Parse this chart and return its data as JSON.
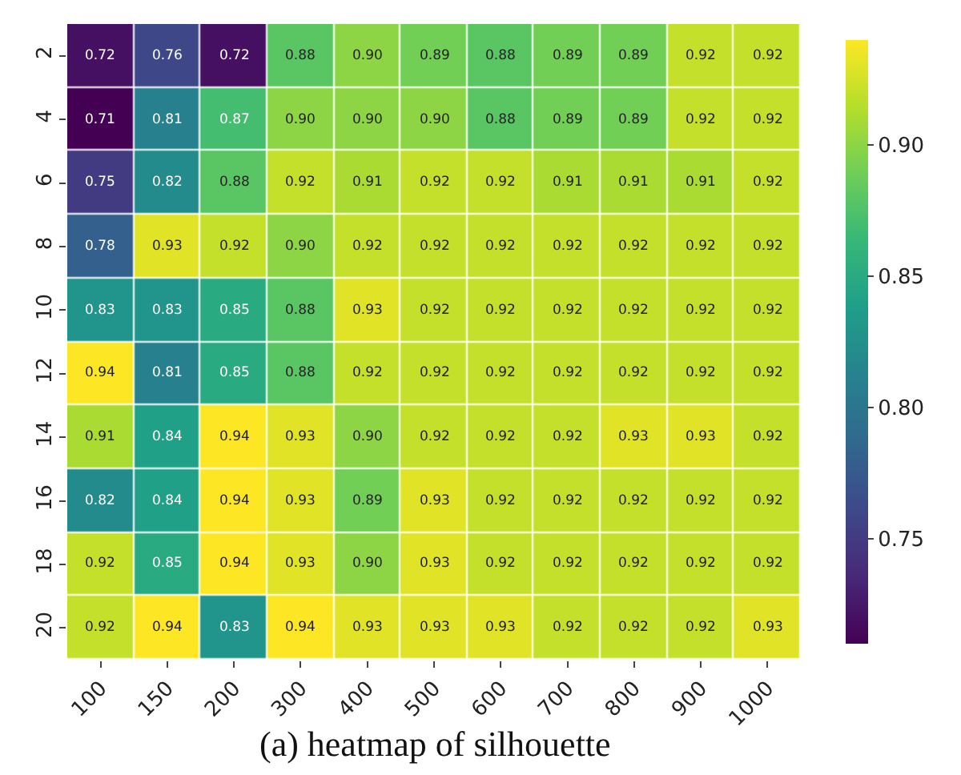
{
  "chart_data": {
    "type": "heatmap",
    "title": "(a) heatmap of silhouette",
    "categories": [
      "100",
      "150",
      "200",
      "300",
      "400",
      "500",
      "600",
      "700",
      "800",
      "900",
      "1000"
    ],
    "y_categories": [
      "2",
      "4",
      "6",
      "8",
      "10",
      "12",
      "14",
      "16",
      "18",
      "20"
    ],
    "cells": [
      [
        0.72,
        0.76,
        0.72,
        0.88,
        0.9,
        0.89,
        0.88,
        0.89,
        0.89,
        0.92,
        0.92
      ],
      [
        0.71,
        0.81,
        0.87,
        0.9,
        0.9,
        0.9,
        0.88,
        0.89,
        0.89,
        0.92,
        0.92
      ],
      [
        0.75,
        0.82,
        0.88,
        0.92,
        0.91,
        0.92,
        0.92,
        0.91,
        0.91,
        0.91,
        0.92
      ],
      [
        0.78,
        0.93,
        0.92,
        0.9,
        0.92,
        0.92,
        0.92,
        0.92,
        0.92,
        0.92,
        0.92
      ],
      [
        0.83,
        0.83,
        0.85,
        0.88,
        0.93,
        0.92,
        0.92,
        0.92,
        0.92,
        0.92,
        0.92
      ],
      [
        0.94,
        0.81,
        0.85,
        0.88,
        0.92,
        0.92,
        0.92,
        0.92,
        0.92,
        0.92,
        0.92
      ],
      [
        0.91,
        0.84,
        0.94,
        0.93,
        0.9,
        0.92,
        0.92,
        0.92,
        0.93,
        0.93,
        0.92
      ],
      [
        0.82,
        0.84,
        0.94,
        0.93,
        0.89,
        0.93,
        0.92,
        0.92,
        0.92,
        0.92,
        0.92
      ],
      [
        0.92,
        0.85,
        0.94,
        0.93,
        0.9,
        0.93,
        0.92,
        0.92,
        0.92,
        0.92,
        0.92
      ],
      [
        0.92,
        0.94,
        0.83,
        0.94,
        0.93,
        0.93,
        0.93,
        0.92,
        0.92,
        0.92,
        0.93
      ]
    ],
    "cell_labels": [
      [
        "0.72",
        "0.76",
        "0.72",
        "0.88",
        "0.90",
        "0.89",
        "0.88",
        "0.89",
        "0.89",
        "0.92",
        "0.92"
      ],
      [
        "0.71",
        "0.81",
        "0.87",
        "0.90",
        "0.90",
        "0.90",
        "0.88",
        "0.89",
        "0.89",
        "0.92",
        "0.92"
      ],
      [
        "0.75",
        "0.82",
        "0.88",
        "0.92",
        "0.91",
        "0.92",
        "0.92",
        "0.91",
        "0.91",
        "0.91",
        "0.92"
      ],
      [
        "0.78",
        "0.93",
        "0.92",
        "0.90",
        "0.92",
        "0.92",
        "0.92",
        "0.92",
        "0.92",
        "0.92",
        "0.92"
      ],
      [
        "0.83",
        "0.83",
        "0.85",
        "0.88",
        "0.93",
        "0.92",
        "0.92",
        "0.92",
        "0.92",
        "0.92",
        "0.92"
      ],
      [
        "0.94",
        "0.81",
        "0.85",
        "0.88",
        "0.92",
        "0.92",
        "0.92",
        "0.92",
        "0.92",
        "0.92",
        "0.92"
      ],
      [
        "0.91",
        "0.84",
        "0.94",
        "0.93",
        "0.90",
        "0.92",
        "0.92",
        "0.92",
        "0.93",
        "0.93",
        "0.92"
      ],
      [
        "0.82",
        "0.84",
        "0.94",
        "0.93",
        "0.89",
        "0.93",
        "0.92",
        "0.92",
        "0.92",
        "0.92",
        "0.92"
      ],
      [
        "0.92",
        "0.85",
        "0.94",
        "0.93",
        "0.90",
        "0.93",
        "0.92",
        "0.92",
        "0.92",
        "0.92",
        "0.92"
      ],
      [
        "0.92",
        "0.94",
        "0.83",
        "0.94",
        "0.93",
        "0.93",
        "0.93",
        "0.92",
        "0.92",
        "0.92",
        "0.93"
      ]
    ],
    "clim": [
      0.71,
      0.94
    ],
    "cticks": [
      0.75,
      {
        "value": 0.8,
        "label": "0.80"
      },
      0.85,
      {
        "value": 0.9,
        "label": "0.90"
      }
    ]
  }
}
